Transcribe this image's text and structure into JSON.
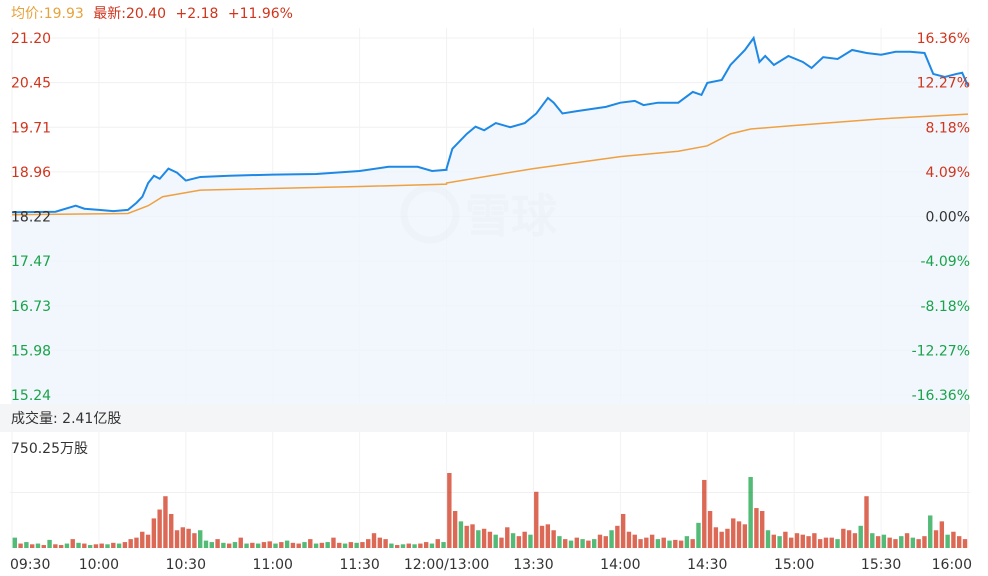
{
  "header": {
    "avg_label": "均价:19.93",
    "last_label": "最新:20.40",
    "change": "+2.18",
    "change_pct": "+11.96%"
  },
  "volume_panel": {
    "total_label": "成交量: 2.41亿股",
    "max_label": "750.25万股"
  },
  "watermark": "雪球",
  "colors": {
    "price_line": "#1e88e5",
    "avg_line": "#f0a040",
    "up": "#d0351d",
    "down": "#1aa34a",
    "neutral": "#333333",
    "area_fill": "#eef5fd"
  },
  "chart_data": [
    {
      "type": "line",
      "title": "",
      "prev_close": 18.22,
      "y_ticks": [
        "21.20",
        "20.45",
        "19.71",
        "18.96",
        "18.22",
        "17.47",
        "16.73",
        "15.98",
        "15.24"
      ],
      "y_ticks_right": [
        "16.36%",
        "12.27%",
        "8.18%",
        "4.09%",
        "0.00%",
        "-4.09%",
        "-8.18%",
        "-12.27%",
        "-16.36%"
      ],
      "ylim": [
        15.24,
        21.2
      ],
      "x_ticks": [
        "09:30",
        "10:00",
        "10:30",
        "11:00",
        "11:30",
        "12:00/13:00",
        "13:30",
        "14:00",
        "14:30",
        "15:00",
        "15:30",
        "16:00"
      ],
      "grid": true,
      "series": [
        {
          "points": [
            [
              "09:30",
              18.29
            ],
            [
              "09:45",
              18.3
            ],
            [
              "09:52",
              18.4
            ],
            [
              "09:55",
              18.35
            ],
            [
              "10:00",
              18.33
            ],
            [
              "10:05",
              18.31
            ],
            [
              "10:10",
              18.33
            ],
            [
              "10:13",
              18.45
            ],
            [
              "10:15",
              18.55
            ],
            [
              "10:17",
              18.78
            ],
            [
              "10:19",
              18.9
            ],
            [
              "10:21",
              18.85
            ],
            [
              "10:24",
              19.02
            ],
            [
              "10:27",
              18.95
            ],
            [
              "10:30",
              18.82
            ],
            [
              "10:35",
              18.88
            ],
            [
              "10:45",
              18.9
            ],
            [
              "11:00",
              18.92
            ],
            [
              "11:15",
              18.93
            ],
            [
              "11:30",
              18.98
            ],
            [
              "11:40",
              19.05
            ],
            [
              "11:50",
              19.05
            ],
            [
              "11:55",
              18.98
            ],
            [
              "12:00",
              19.0
            ],
            [
              "13:00",
              19.02
            ],
            [
              "13:02",
              19.35
            ],
            [
              "13:04",
              19.45
            ],
            [
              "13:07",
              19.6
            ],
            [
              "13:10",
              19.72
            ],
            [
              "13:13",
              19.66
            ],
            [
              "13:17",
              19.78
            ],
            [
              "13:22",
              19.71
            ],
            [
              "13:27",
              19.78
            ],
            [
              "13:31",
              19.94
            ],
            [
              "13:35",
              20.2
            ],
            [
              "13:37",
              20.12
            ],
            [
              "13:40",
              19.94
            ],
            [
              "13:45",
              19.98
            ],
            [
              "13:55",
              20.05
            ],
            [
              "14:00",
              20.12
            ],
            [
              "14:05",
              20.15
            ],
            [
              "14:08",
              20.08
            ],
            [
              "14:13",
              20.12
            ],
            [
              "14:20",
              20.12
            ],
            [
              "14:25",
              20.3
            ],
            [
              "14:28",
              20.25
            ],
            [
              "14:30",
              20.45
            ],
            [
              "14:35",
              20.5
            ],
            [
              "14:38",
              20.75
            ],
            [
              "14:43",
              21.0
            ],
            [
              "14:46",
              21.2
            ],
            [
              "14:48",
              20.8
            ],
            [
              "14:50",
              20.9
            ],
            [
              "14:53",
              20.75
            ],
            [
              "14:58",
              20.9
            ],
            [
              "15:03",
              20.8
            ],
            [
              "15:06",
              20.7
            ],
            [
              "15:10",
              20.88
            ],
            [
              "15:15",
              20.85
            ],
            [
              "15:20",
              21.0
            ],
            [
              "15:25",
              20.95
            ],
            [
              "15:30",
              20.92
            ],
            [
              "15:35",
              20.97
            ],
            [
              "15:40",
              20.97
            ],
            [
              "15:45",
              20.95
            ],
            [
              "15:48",
              20.6
            ],
            [
              "15:52",
              20.55
            ],
            [
              "15:56",
              20.6
            ],
            [
              "15:58",
              20.62
            ],
            [
              "16:00",
              20.4
            ]
          ]
        },
        {
          "points": [
            [
              "09:30",
              18.25
            ],
            [
              "10:10",
              18.27
            ],
            [
              "10:17",
              18.4
            ],
            [
              "10:22",
              18.55
            ],
            [
              "10:35",
              18.66
            ],
            [
              "11:30",
              18.72
            ],
            [
              "12:00",
              18.76
            ],
            [
              "13:00",
              18.78
            ],
            [
              "13:30",
              19.02
            ],
            [
              "14:00",
              19.22
            ],
            [
              "14:20",
              19.31
            ],
            [
              "14:30",
              19.4
            ],
            [
              "14:38",
              19.6
            ],
            [
              "14:45",
              19.68
            ],
            [
              "15:00",
              19.74
            ],
            [
              "15:30",
              19.85
            ],
            [
              "16:00",
              19.93
            ]
          ]
        }
      ]
    },
    {
      "type": "bar",
      "title": "",
      "ylabel": "万股",
      "ylim": [
        0,
        750.25
      ],
      "values": [
        70,
        30,
        40,
        25,
        30,
        20,
        55,
        25,
        20,
        30,
        60,
        35,
        30,
        20,
        25,
        30,
        25,
        35,
        30,
        40,
        60,
        70,
        110,
        90,
        200,
        260,
        350,
        230,
        120,
        140,
        130,
        100,
        120,
        50,
        40,
        60,
        35,
        30,
        40,
        70,
        30,
        35,
        30,
        40,
        45,
        30,
        40,
        50,
        35,
        30,
        40,
        60,
        30,
        35,
        40,
        70,
        35,
        30,
        40,
        35,
        40,
        60,
        100,
        70,
        60,
        30,
        20,
        25,
        30,
        25,
        30,
        40,
        30,
        60,
        40,
        507,
        250,
        180,
        150,
        160,
        120,
        130,
        110,
        90,
        70,
        140,
        100,
        80,
        110,
        90,
        380,
        150,
        160,
        120,
        80,
        60,
        50,
        70,
        60,
        50,
        60,
        90,
        80,
        120,
        150,
        230,
        110,
        90,
        60,
        70,
        90,
        60,
        70,
        50,
        55,
        50,
        80,
        60,
        170,
        460,
        250,
        140,
        110,
        130,
        200,
        180,
        160,
        480,
        270,
        250,
        120,
        90,
        80,
        110,
        70,
        100,
        90,
        80,
        100,
        60,
        70,
        70,
        60,
        130,
        120,
        100,
        150,
        350,
        100,
        80,
        90,
        70,
        60,
        80,
        100,
        70,
        60,
        80,
        220,
        120,
        180,
        90,
        110,
        80,
        60
      ],
      "direction": "grgrgrgrrgrgrgrrgrgrrrrrrrrrrrrrgggrgrgrgrgrrgrgrrgrgrgrrgrgrrrrrgrgrgrrgrgrrgrrgrrgrrgrrgrrrrgrgrgrgrrgrrrrrrrgrgrrgrgrrrrrrrrgrrgrgrrrrrrrrrgrrrgrgrgrrgrgrrgrrgrrrgrgrrrgrgrrgr"
    }
  ]
}
